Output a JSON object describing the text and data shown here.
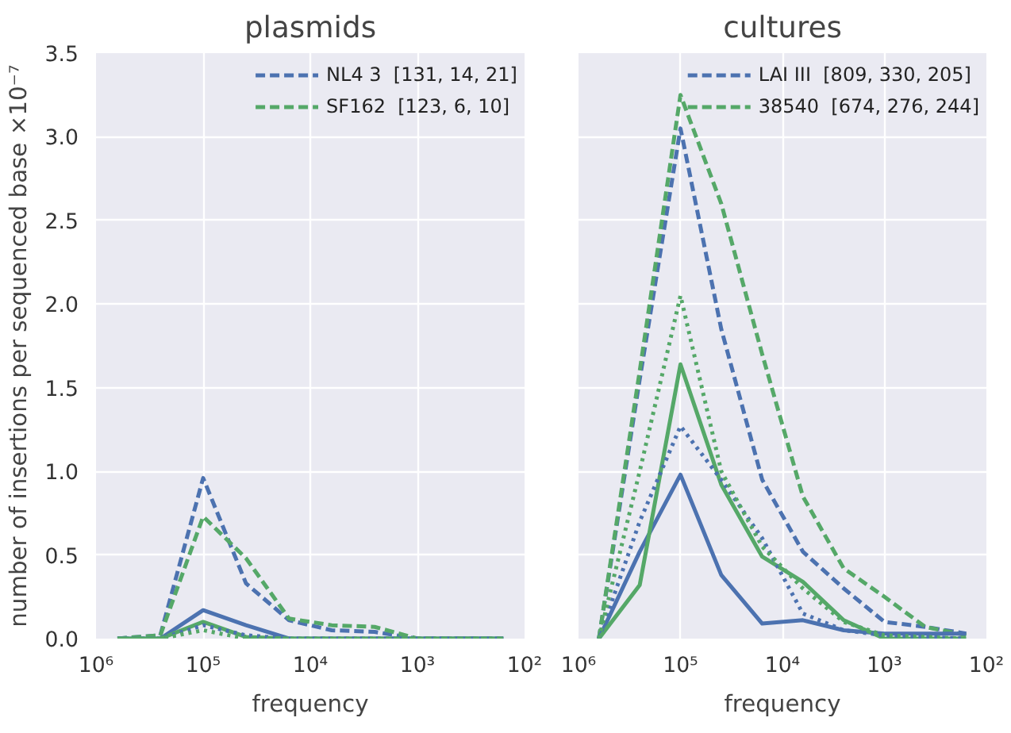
{
  "chart_data": [
    {
      "type": "line",
      "title": "plasmids",
      "xlabel": "frequency",
      "ylabel": "number of insertions per sequenced base ×10⁻⁷",
      "log": "x",
      "grid": true,
      "legend": "top right",
      "marker": "none",
      "x": [
        631000,
        251000,
        100000,
        39800,
        15800,
        6310,
        2510,
        1000,
        398,
        158
      ],
      "xlim": [
        1000000,
        100
      ],
      "xticks": [
        {
          "value": 1000000,
          "label": "10⁶"
        },
        {
          "value": 100000,
          "label": "10⁵"
        },
        {
          "value": 10000,
          "label": "10⁴"
        },
        {
          "value": 1000,
          "label": "10³"
        },
        {
          "value": 100,
          "label": "10²"
        }
      ],
      "ylim": [
        0,
        3.5
      ],
      "yticks": [
        {
          "value": 0,
          "label": "0.0"
        },
        {
          "value": 0.5,
          "label": "0.5"
        },
        {
          "value": 1,
          "label": "1.0"
        },
        {
          "value": 1.5,
          "label": "1.5"
        },
        {
          "value": 2,
          "label": "2.0"
        },
        {
          "value": 2.5,
          "label": "2.5"
        },
        {
          "value": 3,
          "label": "3.0"
        },
        {
          "value": 3.5,
          "label": "3.5"
        }
      ],
      "series": [
        {
          "name": "NL4 3  [131, 14, 21]",
          "color": "#4c72b0",
          "line_style": "dashed",
          "values": [
            0,
            0.02,
            0.96,
            0.33,
            0.11,
            0.05,
            0.04,
            0,
            0,
            0
          ]
        },
        {
          "name": "SF162  [123, 6, 10]",
          "color": "#55a868",
          "line_style": "dashed",
          "values": [
            0,
            0.02,
            0.73,
            0.48,
            0.12,
            0.08,
            0.07,
            0,
            0,
            0
          ]
        },
        {
          "color": "#4c72b0",
          "line_style": "solid",
          "values": [
            0,
            0,
            0.17,
            0.08,
            0,
            0,
            0,
            0,
            0,
            0
          ]
        },
        {
          "color": "#55a868",
          "line_style": "solid",
          "values": [
            0,
            0,
            0.1,
            0.01,
            0,
            0,
            0,
            0,
            0,
            0
          ]
        },
        {
          "color": "#4c72b0",
          "line_style": "dotted",
          "values": [
            0,
            0,
            0.08,
            0.02,
            0,
            0,
            0,
            0,
            0,
            0
          ]
        },
        {
          "color": "#55a868",
          "line_style": "dotted",
          "values": [
            0,
            0,
            0.05,
            0,
            0,
            0,
            0,
            0,
            0,
            0
          ]
        }
      ]
    },
    {
      "type": "line",
      "title": "cultures",
      "xlabel": "frequency",
      "log": "x",
      "grid": true,
      "legend": "top right",
      "marker": "none",
      "tick_labels": "x",
      "x": [
        631000,
        251000,
        100000,
        39800,
        15800,
        6310,
        2510,
        1000,
        398,
        158
      ],
      "xlim": [
        1000000,
        100
      ],
      "xticks": [
        {
          "value": 1000000,
          "label": "10⁶"
        },
        {
          "value": 100000,
          "label": "10⁵"
        },
        {
          "value": 10000,
          "label": "10⁴"
        },
        {
          "value": 1000,
          "label": "10³"
        },
        {
          "value": 100,
          "label": "10²"
        }
      ],
      "ylim": [
        0,
        3.5
      ],
      "yticks": [
        0,
        0.5,
        1,
        1.5,
        2,
        2.5,
        3,
        3.5
      ],
      "series": [
        {
          "name": "LAI III  [809, 330, 205]",
          "color": "#4c72b0",
          "line_style": "dashed",
          "values": [
            0,
            1.55,
            3.05,
            1.85,
            0.95,
            0.52,
            0.3,
            0.1,
            0.07,
            0.03
          ]
        },
        {
          "name": "38540  [674, 276, 244]",
          "color": "#55a868",
          "line_style": "dashed",
          "values": [
            0,
            1.6,
            3.25,
            2.6,
            1.7,
            0.85,
            0.42,
            0.25,
            0.07,
            0.02
          ]
        },
        {
          "color": "#4c72b0",
          "line_style": "solid",
          "values": [
            0,
            0.52,
            0.98,
            0.38,
            0.09,
            0.11,
            0.05,
            0.03,
            0.03,
            0.03
          ]
        },
        {
          "color": "#55a868",
          "line_style": "solid",
          "values": [
            0,
            0.32,
            1.64,
            0.92,
            0.49,
            0.34,
            0.11,
            0,
            0,
            0
          ]
        },
        {
          "color": "#4c72b0",
          "line_style": "dotted",
          "values": [
            0,
            0.7,
            1.27,
            0.95,
            0.6,
            0.15,
            0.05,
            0.02,
            0.01,
            0
          ]
        },
        {
          "color": "#55a868",
          "line_style": "dotted",
          "values": [
            0,
            1.0,
            2.05,
            1.0,
            0.55,
            0.3,
            0.1,
            0.02,
            0.01,
            0
          ]
        }
      ]
    }
  ]
}
